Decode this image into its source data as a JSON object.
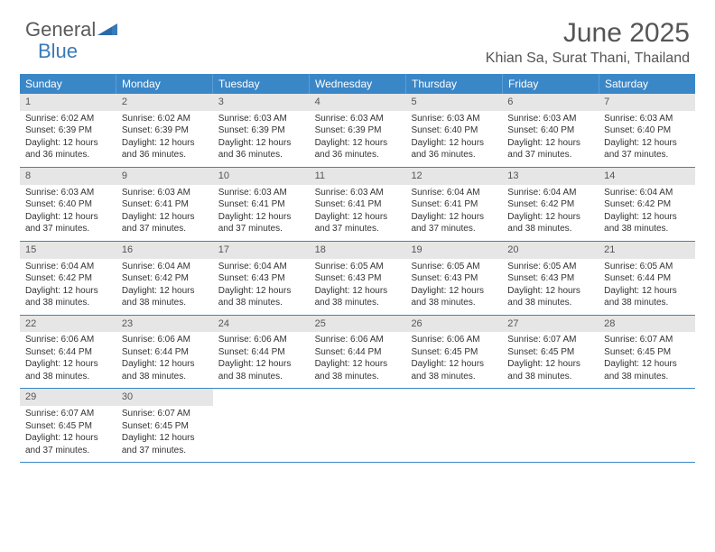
{
  "logo": {
    "main": "General",
    "accent": "Blue"
  },
  "title": "June 2025",
  "location": "Khian Sa, Surat Thani, Thailand",
  "colors": {
    "header_bg": "#3a87c8",
    "header_text": "#ffffff",
    "daynum_bg": "#e6e6e6",
    "row_border": "#3a87c8",
    "logo_main": "#5a5a5a",
    "logo_accent": "#3a7ab8"
  },
  "day_names": [
    "Sunday",
    "Monday",
    "Tuesday",
    "Wednesday",
    "Thursday",
    "Friday",
    "Saturday"
  ],
  "days": [
    {
      "n": 1,
      "sr": "6:02 AM",
      "ss": "6:39 PM",
      "dl": "12 hours and 36 minutes."
    },
    {
      "n": 2,
      "sr": "6:02 AM",
      "ss": "6:39 PM",
      "dl": "12 hours and 36 minutes."
    },
    {
      "n": 3,
      "sr": "6:03 AM",
      "ss": "6:39 PM",
      "dl": "12 hours and 36 minutes."
    },
    {
      "n": 4,
      "sr": "6:03 AM",
      "ss": "6:39 PM",
      "dl": "12 hours and 36 minutes."
    },
    {
      "n": 5,
      "sr": "6:03 AM",
      "ss": "6:40 PM",
      "dl": "12 hours and 36 minutes."
    },
    {
      "n": 6,
      "sr": "6:03 AM",
      "ss": "6:40 PM",
      "dl": "12 hours and 37 minutes."
    },
    {
      "n": 7,
      "sr": "6:03 AM",
      "ss": "6:40 PM",
      "dl": "12 hours and 37 minutes."
    },
    {
      "n": 8,
      "sr": "6:03 AM",
      "ss": "6:40 PM",
      "dl": "12 hours and 37 minutes."
    },
    {
      "n": 9,
      "sr": "6:03 AM",
      "ss": "6:41 PM",
      "dl": "12 hours and 37 minutes."
    },
    {
      "n": 10,
      "sr": "6:03 AM",
      "ss": "6:41 PM",
      "dl": "12 hours and 37 minutes."
    },
    {
      "n": 11,
      "sr": "6:03 AM",
      "ss": "6:41 PM",
      "dl": "12 hours and 37 minutes."
    },
    {
      "n": 12,
      "sr": "6:04 AM",
      "ss": "6:41 PM",
      "dl": "12 hours and 37 minutes."
    },
    {
      "n": 13,
      "sr": "6:04 AM",
      "ss": "6:42 PM",
      "dl": "12 hours and 38 minutes."
    },
    {
      "n": 14,
      "sr": "6:04 AM",
      "ss": "6:42 PM",
      "dl": "12 hours and 38 minutes."
    },
    {
      "n": 15,
      "sr": "6:04 AM",
      "ss": "6:42 PM",
      "dl": "12 hours and 38 minutes."
    },
    {
      "n": 16,
      "sr": "6:04 AM",
      "ss": "6:42 PM",
      "dl": "12 hours and 38 minutes."
    },
    {
      "n": 17,
      "sr": "6:04 AM",
      "ss": "6:43 PM",
      "dl": "12 hours and 38 minutes."
    },
    {
      "n": 18,
      "sr": "6:05 AM",
      "ss": "6:43 PM",
      "dl": "12 hours and 38 minutes."
    },
    {
      "n": 19,
      "sr": "6:05 AM",
      "ss": "6:43 PM",
      "dl": "12 hours and 38 minutes."
    },
    {
      "n": 20,
      "sr": "6:05 AM",
      "ss": "6:43 PM",
      "dl": "12 hours and 38 minutes."
    },
    {
      "n": 21,
      "sr": "6:05 AM",
      "ss": "6:44 PM",
      "dl": "12 hours and 38 minutes."
    },
    {
      "n": 22,
      "sr": "6:06 AM",
      "ss": "6:44 PM",
      "dl": "12 hours and 38 minutes."
    },
    {
      "n": 23,
      "sr": "6:06 AM",
      "ss": "6:44 PM",
      "dl": "12 hours and 38 minutes."
    },
    {
      "n": 24,
      "sr": "6:06 AM",
      "ss": "6:44 PM",
      "dl": "12 hours and 38 minutes."
    },
    {
      "n": 25,
      "sr": "6:06 AM",
      "ss": "6:44 PM",
      "dl": "12 hours and 38 minutes."
    },
    {
      "n": 26,
      "sr": "6:06 AM",
      "ss": "6:45 PM",
      "dl": "12 hours and 38 minutes."
    },
    {
      "n": 27,
      "sr": "6:07 AM",
      "ss": "6:45 PM",
      "dl": "12 hours and 38 minutes."
    },
    {
      "n": 28,
      "sr": "6:07 AM",
      "ss": "6:45 PM",
      "dl": "12 hours and 38 minutes."
    },
    {
      "n": 29,
      "sr": "6:07 AM",
      "ss": "6:45 PM",
      "dl": "12 hours and 37 minutes."
    },
    {
      "n": 30,
      "sr": "6:07 AM",
      "ss": "6:45 PM",
      "dl": "12 hours and 37 minutes."
    }
  ],
  "labels": {
    "sunrise": "Sunrise:",
    "sunset": "Sunset:",
    "daylight": "Daylight:"
  }
}
